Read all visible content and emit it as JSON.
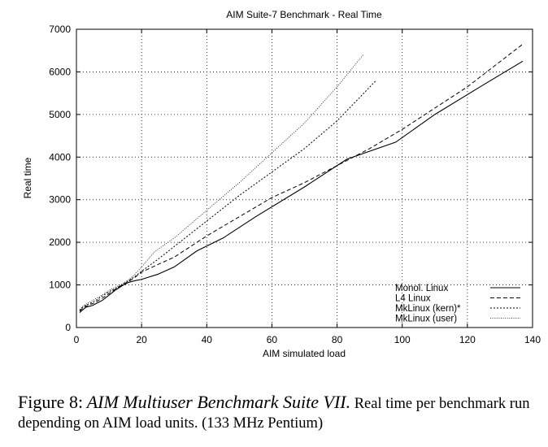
{
  "chart_data": {
    "type": "line",
    "title": "AIM Suite-7 Benchmark - Real Time",
    "xlabel": "AIM simulated load",
    "ylabel": "Real time",
    "xlim": [
      0,
      140
    ],
    "ylim": [
      0,
      7000
    ],
    "x_ticks": [
      0,
      20,
      40,
      60,
      80,
      100,
      120,
      140
    ],
    "y_ticks": [
      0,
      1000,
      2000,
      3000,
      4000,
      5000,
      6000,
      7000
    ],
    "grid": true,
    "legend_position": "bottom-right",
    "series": [
      {
        "name": "Monol. Linux",
        "style": "solid",
        "x": [
          1,
          2,
          3,
          4,
          5,
          6,
          7,
          8,
          9,
          10,
          12,
          14,
          16,
          18,
          20,
          25,
          30,
          37,
          45,
          55,
          70,
          83,
          98,
          110,
          125,
          137
        ],
        "y": [
          350,
          420,
          480,
          500,
          520,
          560,
          600,
          640,
          700,
          760,
          880,
          980,
          1060,
          1100,
          1130,
          1250,
          1420,
          1800,
          2100,
          2600,
          3300,
          3950,
          4350,
          5000,
          5700,
          6250
        ]
      },
      {
        "name": "L4 Linux",
        "style": "dashed",
        "x": [
          1,
          2,
          3,
          4,
          5,
          6,
          7,
          8,
          9,
          10,
          12,
          14,
          16,
          18,
          20,
          25,
          30,
          40,
          50,
          60,
          70,
          80,
          90,
          100,
          110,
          120,
          137
        ],
        "y": [
          380,
          460,
          500,
          540,
          560,
          600,
          650,
          690,
          740,
          800,
          900,
          1000,
          1080,
          1180,
          1300,
          1480,
          1650,
          2150,
          2600,
          3050,
          3400,
          3800,
          4200,
          4650,
          5150,
          5650,
          6650
        ]
      },
      {
        "name": "MkLinux (kern)*",
        "style": "dotted",
        "x": [
          1,
          2,
          3,
          4,
          5,
          6,
          7,
          8,
          9,
          10,
          12,
          14,
          16,
          18,
          20,
          25,
          30,
          40,
          50,
          60,
          70,
          80,
          92
        ],
        "y": [
          400,
          480,
          530,
          560,
          600,
          640,
          690,
          740,
          790,
          840,
          920,
          1000,
          1100,
          1200,
          1320,
          1600,
          1900,
          2500,
          3100,
          3650,
          4200,
          4850,
          5800
        ]
      },
      {
        "name": "MkLinux (user)",
        "style": "fine-dotted",
        "x": [
          1,
          2,
          3,
          4,
          5,
          6,
          7,
          8,
          9,
          10,
          12,
          14,
          16,
          18,
          20,
          24,
          30,
          40,
          50,
          60,
          70,
          80,
          88
        ],
        "y": [
          420,
          500,
          550,
          600,
          640,
          680,
          720,
          770,
          820,
          870,
          950,
          1020,
          1120,
          1250,
          1420,
          1780,
          2100,
          2750,
          3400,
          4100,
          4800,
          5650,
          6400
        ]
      }
    ]
  },
  "caption": {
    "label": "Figure 8:",
    "title": "AIM Multiuser Benchmark Suite VII.",
    "text": "Real time per benchmark run depending on AIM load units. (133 MHz Pentium)"
  }
}
